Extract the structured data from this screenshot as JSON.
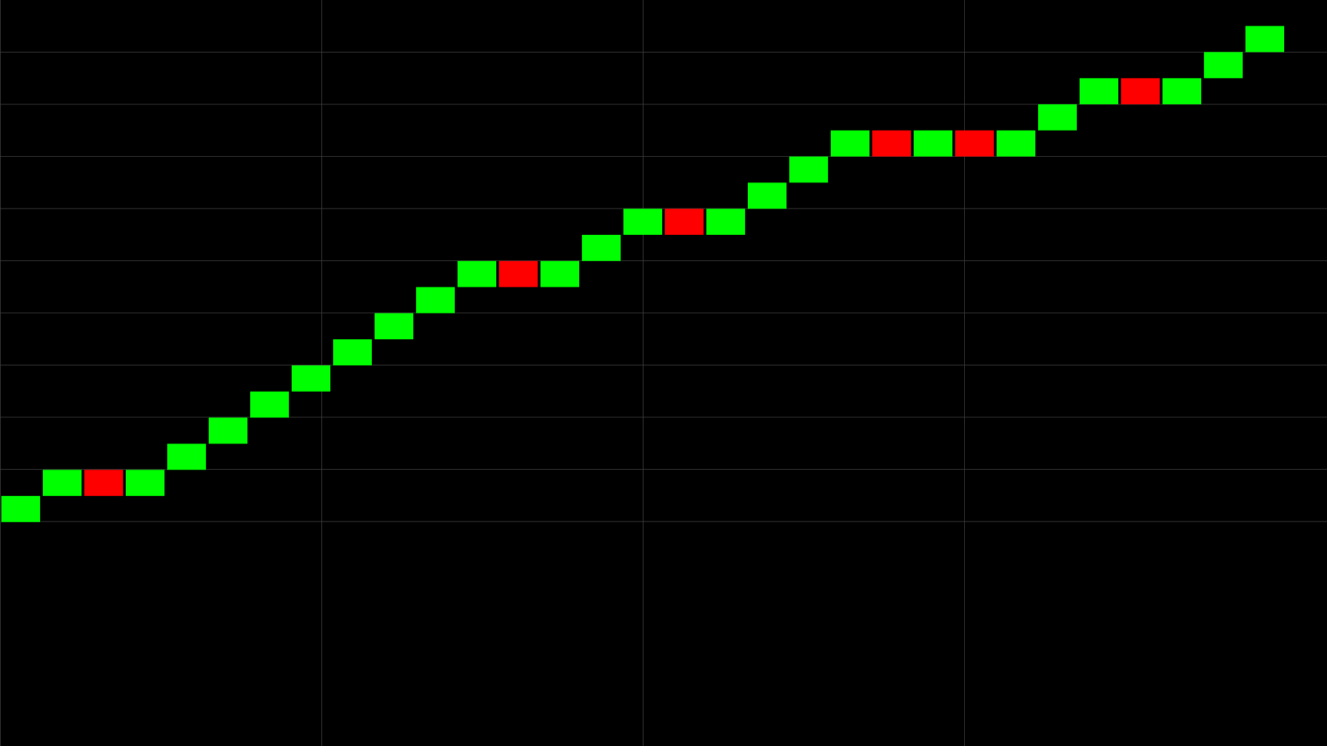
{
  "chart_data": {
    "type": "heatmap",
    "title": "",
    "xlabel": "",
    "ylabel": "",
    "grid": true,
    "background": "#000000",
    "grid_color": "#3a3a3a",
    "colors": {
      "up": "#00ff00",
      "down": "#ff0000"
    },
    "xlim": [
      0,
      32
    ],
    "ylim": [
      0,
      14.3
    ],
    "columns": [
      {
        "x": 0,
        "y": 4,
        "kind": "up"
      },
      {
        "x": 1,
        "y": 5,
        "kind": "up"
      },
      {
        "x": 2,
        "y": 5,
        "kind": "down"
      },
      {
        "x": 3,
        "y": 5,
        "kind": "up"
      },
      {
        "x": 4,
        "y": 6,
        "kind": "up"
      },
      {
        "x": 5,
        "y": 7,
        "kind": "up"
      },
      {
        "x": 6,
        "y": 8,
        "kind": "up"
      },
      {
        "x": 7,
        "y": 9,
        "kind": "up"
      },
      {
        "x": 8,
        "y": 10,
        "kind": "up"
      },
      {
        "x": 9,
        "y": 11,
        "kind": "up"
      },
      {
        "x": 10,
        "y": 12,
        "kind": "up"
      },
      {
        "x": 11,
        "y": 13,
        "kind": "up"
      },
      {
        "x": 12,
        "y": 13,
        "kind": "down"
      },
      {
        "x": 13,
        "y": 13,
        "kind": "up"
      },
      {
        "x": 14,
        "y": 14,
        "kind": "up"
      },
      {
        "x": 15,
        "y": 15,
        "kind": "up"
      },
      {
        "x": 16,
        "y": 15,
        "kind": "down"
      },
      {
        "x": 17,
        "y": 15,
        "kind": "up"
      },
      {
        "x": 18,
        "y": 16,
        "kind": "up"
      },
      {
        "x": 19,
        "y": 17,
        "kind": "up"
      },
      {
        "x": 20,
        "y": 18,
        "kind": "up"
      },
      {
        "x": 21,
        "y": 18,
        "kind": "down"
      },
      {
        "x": 22,
        "y": 18,
        "kind": "up"
      },
      {
        "x": 23,
        "y": 18,
        "kind": "down"
      },
      {
        "x": 24,
        "y": 18,
        "kind": "up"
      },
      {
        "x": 25,
        "y": 19,
        "kind": "up"
      },
      {
        "x": 26,
        "y": 20,
        "kind": "up"
      },
      {
        "x": 27,
        "y": 20,
        "kind": "down"
      },
      {
        "x": 28,
        "y": 20,
        "kind": "up"
      },
      {
        "x": 29,
        "y": 21,
        "kind": "up"
      },
      {
        "x": 30,
        "y": 22,
        "kind": "up"
      }
    ]
  }
}
